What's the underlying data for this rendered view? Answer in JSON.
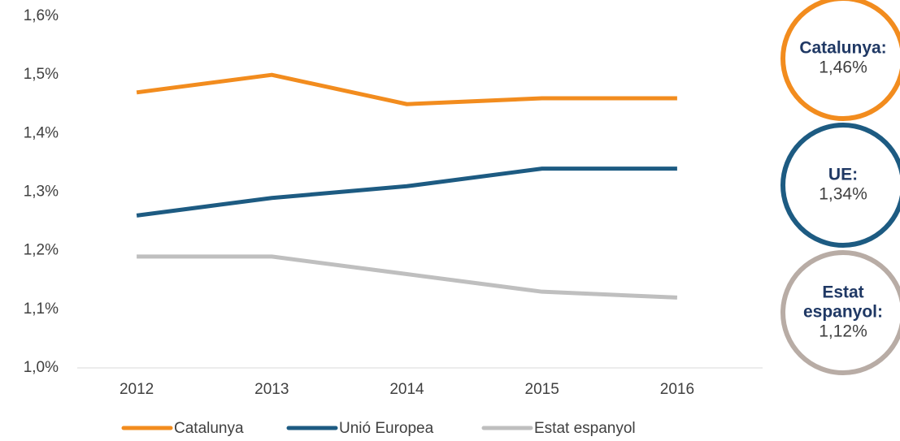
{
  "chart_data": {
    "type": "line",
    "categories": [
      "2012",
      "2013",
      "2014",
      "2015",
      "2016"
    ],
    "series": [
      {
        "name": "Catalunya",
        "color": "#f28c1e",
        "values": [
          1.47,
          1.5,
          1.45,
          1.46,
          1.46
        ]
      },
      {
        "name": "Unió Europea",
        "color": "#1d5b82",
        "values": [
          1.26,
          1.29,
          1.31,
          1.34,
          1.34
        ]
      },
      {
        "name": "Estat espanyol",
        "color": "#bfbfbf",
        "values": [
          1.19,
          1.19,
          1.16,
          1.13,
          1.12
        ]
      }
    ],
    "ylim": [
      1.0,
      1.6
    ],
    "yticks": [
      {
        "value": 1.0,
        "label": "1,0%"
      },
      {
        "value": 1.1,
        "label": "1,1%"
      },
      {
        "value": 1.2,
        "label": "1,2%"
      },
      {
        "value": 1.3,
        "label": "1,3%"
      },
      {
        "value": 1.4,
        "label": "1,4%"
      },
      {
        "value": 1.5,
        "label": "1,5%"
      },
      {
        "value": 1.6,
        "label": "1,6%"
      }
    ],
    "grid": false,
    "legend": "bottom",
    "annotations": [
      {
        "label": [
          "Catalunya:"
        ],
        "text": "1,46%",
        "color": "#f28c1e"
      },
      {
        "label": [
          "UE:"
        ],
        "text": "1,34%",
        "color": "#1d5b82"
      },
      {
        "label": [
          "Estat",
          "espanyol:"
        ],
        "text": "1,12%",
        "color": "#b8aca5"
      }
    ]
  }
}
